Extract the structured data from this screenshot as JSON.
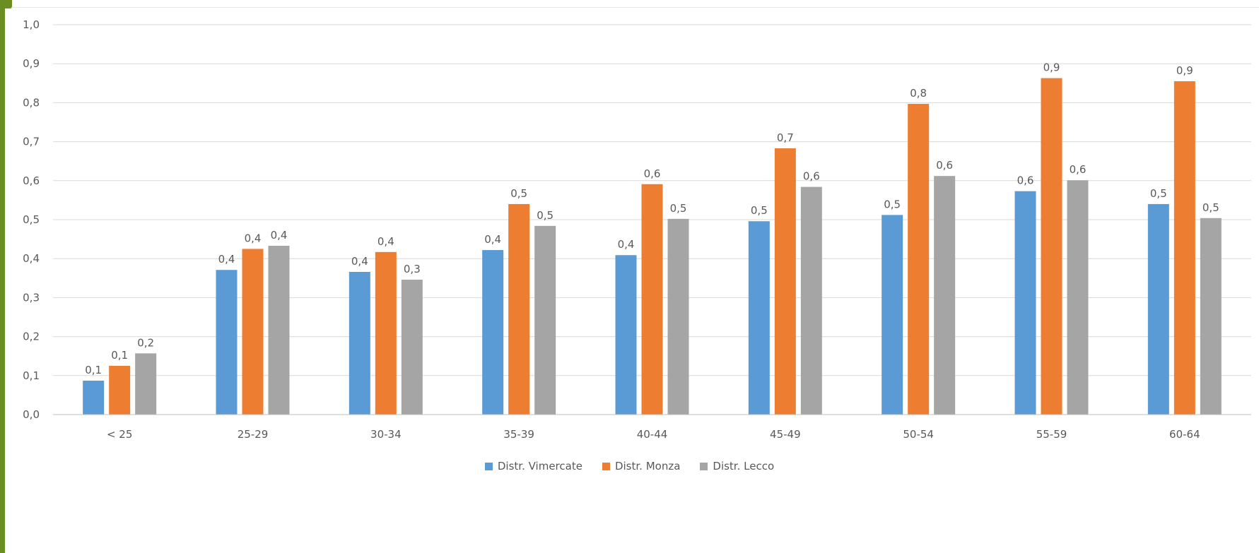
{
  "chart_data": {
    "type": "bar",
    "categories": [
      "< 25",
      "25-29",
      "30-34",
      "35-39",
      "40-44",
      "45-49",
      "50-54",
      "55-59",
      "60-64"
    ],
    "series": [
      {
        "name": "Distr. Vimercate",
        "color": "#5b9bd5",
        "values": [
          0.087,
          0.371,
          0.366,
          0.422,
          0.409,
          0.496,
          0.512,
          0.573,
          0.54
        ],
        "labels": [
          "0,1",
          "0,4",
          "0,4",
          "0,4",
          "0,4",
          "0,5",
          "0,5",
          "0,6",
          "0,5"
        ]
      },
      {
        "name": "Distr. Monza",
        "color": "#ed7d31",
        "values": [
          0.125,
          0.425,
          0.417,
          0.54,
          0.591,
          0.683,
          0.797,
          0.863,
          0.855
        ],
        "labels": [
          "0,1",
          "0,4",
          "0,4",
          "0,5",
          "0,6",
          "0,7",
          "0,8",
          "0,9",
          "0,9"
        ]
      },
      {
        "name": "Distr. Lecco",
        "color": "#a5a5a5",
        "values": [
          0.157,
          0.433,
          0.346,
          0.484,
          0.502,
          0.584,
          0.612,
          0.601,
          0.504
        ],
        "labels": [
          "0,2",
          "0,4",
          "0,3",
          "0,5",
          "0,5",
          "0,6",
          "0,6",
          "0,6",
          "0,5"
        ]
      }
    ],
    "y_ticks": [
      "0,0",
      "0,1",
      "0,2",
      "0,3",
      "0,4",
      "0,5",
      "0,6",
      "0,7",
      "0,8",
      "0,9",
      "1,0"
    ],
    "ylim": [
      0,
      1.0
    ],
    "grid": true,
    "legend_position": "bottom"
  }
}
